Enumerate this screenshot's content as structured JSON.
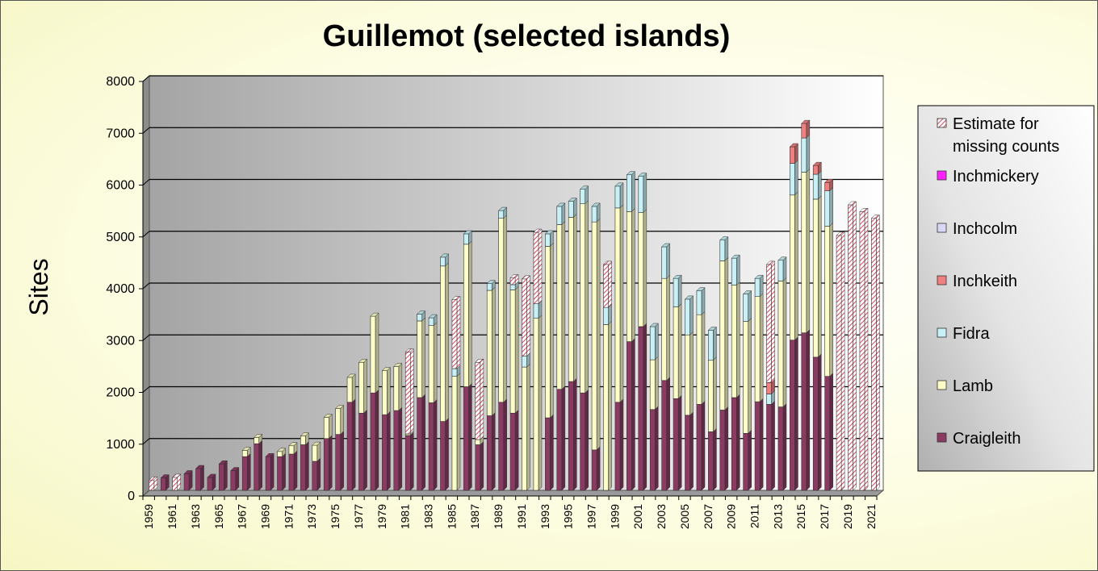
{
  "chart_data": {
    "type": "bar",
    "stacked": true,
    "three_d": true,
    "title": "Guillemot (selected islands)",
    "xlabel": "",
    "ylabel": "Sites",
    "ylim": [
      0,
      8000
    ],
    "yticks": [
      0,
      1000,
      2000,
      3000,
      4000,
      5000,
      6000,
      7000,
      8000
    ],
    "grid": true,
    "legend_position": "right",
    "x_tick_labels": [
      "1959",
      "1961",
      "1963",
      "1965",
      "1967",
      "1969",
      "1971",
      "1973",
      "1975",
      "1977",
      "1979",
      "1981",
      "1983",
      "1985",
      "1987",
      "1989",
      "1991",
      "1993",
      "1995",
      "1997",
      "1999",
      "2001",
      "2003",
      "2005",
      "2007",
      "2009",
      "2011",
      "2013",
      "2015",
      "2017",
      "2019",
      "2021"
    ],
    "categories": [
      "1959",
      "1960",
      "1961",
      "1962",
      "1963",
      "1964",
      "1965",
      "1966",
      "1967",
      "1968",
      "1969",
      "1970",
      "1971",
      "1972",
      "1973",
      "1974",
      "1975",
      "1976",
      "1977",
      "1978",
      "1979",
      "1980",
      "1981",
      "1982",
      "1983",
      "1984",
      "1985",
      "1986",
      "1987",
      "1988",
      "1989",
      "1990",
      "1991",
      "1992",
      "1993",
      "1994",
      "1995",
      "1996",
      "1997",
      "1998",
      "1999",
      "2000",
      "2001",
      "2002",
      "2003",
      "2004",
      "2005",
      "2006",
      "2007",
      "2008",
      "2009",
      "2010",
      "2011",
      "2012",
      "2013",
      "2014",
      "2015",
      "2016",
      "2017",
      "2018",
      "2019",
      "2020",
      "2021"
    ],
    "series": [
      {
        "name": "Craigleith",
        "color": "#8b3a62",
        "pattern": "solid",
        "values": [
          0,
          240,
          0,
          320,
          420,
          250,
          510,
          380,
          650,
          900,
          650,
          650,
          700,
          880,
          560,
          1000,
          1080,
          1700,
          1490,
          1880,
          1460,
          1540,
          1060,
          1790,
          1690,
          1330,
          0,
          2000,
          880,
          1440,
          1700,
          1490,
          0,
          0,
          1400,
          1950,
          2100,
          1880,
          780,
          0,
          1700,
          2870,
          3160,
          1560,
          2120,
          1770,
          1450,
          1660,
          1130,
          1550,
          1790,
          1100,
          1710,
          1660,
          1610,
          2900,
          3040,
          2570,
          2200,
          0,
          0,
          0,
          0
        ]
      },
      {
        "name": "Lamb",
        "color": "#fdfdc8",
        "pattern": "solid",
        "values": [
          0,
          0,
          0,
          0,
          0,
          0,
          0,
          0,
          120,
          120,
          0,
          100,
          160,
          170,
          310,
          410,
          500,
          480,
          980,
          1480,
          850,
          850,
          30,
          1480,
          1490,
          3000,
          2200,
          2750,
          100,
          2420,
          3550,
          2380,
          2380,
          3320,
          3310,
          3180,
          3170,
          3650,
          4400,
          3200,
          3750,
          2510,
          2200,
          960,
          1970,
          1770,
          1550,
          1730,
          1380,
          2880,
          2170,
          2160,
          2030,
          0,
          2430,
          2800,
          3100,
          3050,
          2900,
          0,
          0,
          0,
          0
        ]
      },
      {
        "name": "Fidra",
        "color": "#c7f1f6",
        "pattern": "solid",
        "values": [
          0,
          0,
          0,
          0,
          0,
          0,
          0,
          0,
          0,
          0,
          0,
          0,
          0,
          0,
          0,
          0,
          0,
          0,
          0,
          0,
          0,
          0,
          0,
          130,
          150,
          170,
          150,
          200,
          0,
          130,
          150,
          100,
          210,
          280,
          240,
          350,
          310,
          280,
          300,
          330,
          420,
          710,
          700,
          640,
          610,
          550,
          690,
          460,
          580,
          400,
          520,
          530,
          350,
          200,
          400,
          610,
          660,
          480,
          680,
          0,
          0,
          0,
          0
        ]
      },
      {
        "name": "Inchkeith",
        "color": "#f08080",
        "pattern": "solid",
        "values": [
          0,
          0,
          0,
          0,
          0,
          0,
          0,
          0,
          0,
          0,
          0,
          0,
          0,
          0,
          0,
          0,
          0,
          0,
          0,
          0,
          0,
          0,
          0,
          0,
          0,
          0,
          0,
          0,
          0,
          0,
          0,
          0,
          0,
          0,
          0,
          0,
          0,
          0,
          0,
          0,
          0,
          0,
          0,
          0,
          0,
          0,
          0,
          0,
          0,
          0,
          0,
          0,
          0,
          220,
          0,
          320,
          280,
          170,
          160,
          0,
          0,
          0,
          0
        ]
      },
      {
        "name": "Inchcolm",
        "color": "#d8d8f6",
        "pattern": "solid",
        "values": [
          0,
          0,
          0,
          0,
          0,
          0,
          0,
          0,
          0,
          0,
          0,
          0,
          0,
          0,
          0,
          0,
          0,
          0,
          0,
          0,
          0,
          0,
          0,
          0,
          0,
          0,
          0,
          0,
          0,
          0,
          0,
          0,
          0,
          0,
          0,
          0,
          0,
          0,
          0,
          0,
          0,
          0,
          0,
          0,
          0,
          0,
          0,
          0,
          0,
          0,
          0,
          0,
          0,
          0,
          0,
          0,
          0,
          0,
          0,
          0,
          0,
          0,
          0
        ]
      },
      {
        "name": "Inchmickery",
        "color": "#ff20ff",
        "pattern": "solid",
        "values": [
          0,
          0,
          0,
          0,
          0,
          0,
          0,
          0,
          0,
          0,
          0,
          0,
          0,
          0,
          0,
          0,
          0,
          0,
          0,
          0,
          0,
          0,
          0,
          0,
          0,
          0,
          0,
          0,
          0,
          0,
          0,
          0,
          0,
          0,
          0,
          0,
          0,
          0,
          0,
          0,
          0,
          0,
          0,
          0,
          0,
          0,
          0,
          0,
          0,
          0,
          0,
          0,
          0,
          0,
          0,
          0,
          0,
          0,
          0,
          0,
          0,
          0,
          0
        ]
      },
      {
        "name": "Estimate for missing counts",
        "color": "#e05a6e",
        "pattern": "hatch",
        "values": [
          200,
          0,
          250,
          0,
          0,
          0,
          0,
          0,
          0,
          0,
          0,
          0,
          0,
          0,
          0,
          0,
          0,
          0,
          0,
          0,
          0,
          0,
          1580,
          0,
          0,
          0,
          1330,
          0,
          1490,
          0,
          0,
          130,
          1490,
          1380,
          0,
          0,
          0,
          0,
          0,
          830,
          0,
          0,
          0,
          0,
          0,
          0,
          0,
          0,
          0,
          0,
          0,
          0,
          0,
          2280,
          0,
          0,
          0,
          0,
          0,
          4920,
          5510,
          5380,
          5250
        ]
      }
    ],
    "legend_order": [
      "Estimate for missing counts",
      "Inchmickery",
      "Inchcolm",
      "Inchkeith",
      "Fidra",
      "Lamb",
      "Craigleith"
    ]
  }
}
